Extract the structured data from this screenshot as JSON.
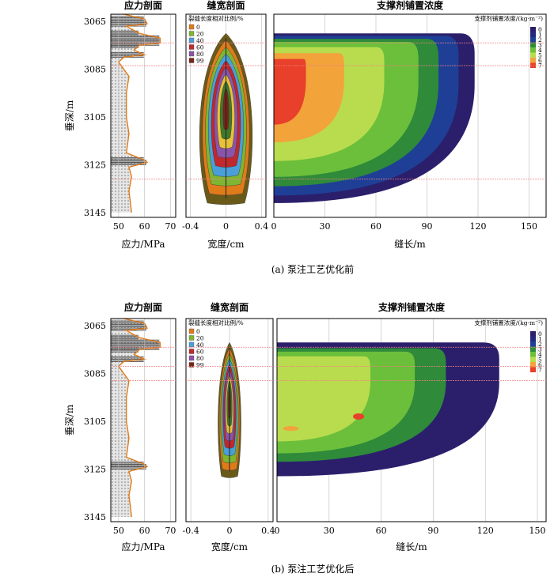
{
  "chart_data": [
    {
      "id": "a",
      "caption": "(a) 泵注工艺优化前",
      "ylabel": "垂深/m",
      "yticks": [
        "3065",
        "3085",
        "3105",
        "3125",
        "3145"
      ],
      "ylim": [
        3062,
        3147
      ],
      "stress": {
        "title": "应力剖面",
        "xlabel": "应力/MPa",
        "xticks": [
          "50",
          "60",
          "70"
        ],
        "xlim": [
          47,
          72
        ],
        "profile": [
          {
            "depth": 3062,
            "value": 52
          },
          {
            "depth": 3064,
            "value": 60
          },
          {
            "depth": 3066,
            "value": 61
          },
          {
            "depth": 3067,
            "value": 53
          },
          {
            "depth": 3070,
            "value": 58
          },
          {
            "depth": 3072,
            "value": 66
          },
          {
            "depth": 3074,
            "value": 66
          },
          {
            "depth": 3075,
            "value": 58
          },
          {
            "depth": 3077,
            "value": 56
          },
          {
            "depth": 3079,
            "value": 60
          },
          {
            "depth": 3080,
            "value": 52
          },
          {
            "depth": 3082,
            "value": 50
          },
          {
            "depth": 3085,
            "value": 52
          },
          {
            "depth": 3088,
            "value": 54
          },
          {
            "depth": 3095,
            "value": 53
          },
          {
            "depth": 3105,
            "value": 53
          },
          {
            "depth": 3112,
            "value": 54
          },
          {
            "depth": 3120,
            "value": 53
          },
          {
            "depth": 3123,
            "value": 60
          },
          {
            "depth": 3124,
            "value": 61
          },
          {
            "depth": 3126,
            "value": 54
          },
          {
            "depth": 3130,
            "value": 55
          },
          {
            "depth": 3136,
            "value": 54
          },
          {
            "depth": 3145,
            "value": 55
          }
        ]
      },
      "width": {
        "title": "缝宽剖面",
        "xlabel": "宽度/cm",
        "xticks": [
          "-0.4",
          "0",
          "0.4"
        ],
        "xlim": [
          -0.45,
          0.45
        ],
        "legend_title": "裂缝长度相对比例/%",
        "legend": [
          {
            "label": "0",
            "color": "#e07b1a"
          },
          {
            "label": "20",
            "color": "#7fb532"
          },
          {
            "label": "40",
            "color": "#4a9fd8"
          },
          {
            "label": "60",
            "color": "#c0282d"
          },
          {
            "label": "80",
            "color": "#8a55a8"
          },
          {
            "label": "99",
            "color": "#7a2418"
          }
        ],
        "top": 3070,
        "bottom": 3141,
        "max_half_width": 0.35
      },
      "conc": {
        "title": "支撑剂铺置浓度",
        "xlabel": "缝长/m",
        "xticks": [
          "0",
          "30",
          "60",
          "90",
          "120",
          "150"
        ],
        "xlim": [
          0,
          160
        ],
        "legend_title": "支撑剂铺置浓度/(kg·m⁻²)",
        "legend": [
          "0",
          "1",
          "2",
          "3",
          "4",
          "5",
          "6",
          "7"
        ],
        "length": 118,
        "top": 3070,
        "bottom": 3141
      },
      "hlines": [
        3074,
        3083.5,
        3131
      ]
    },
    {
      "id": "b",
      "caption": "(b) 泵注工艺优化后",
      "ylabel": "垂深/m",
      "yticks": [
        "3065",
        "3085",
        "3105",
        "3125",
        "3145"
      ],
      "ylim": [
        3062,
        3147
      ],
      "stress": {
        "title": "应力剖面",
        "xlabel": "应力/MPa",
        "xticks": [
          "50",
          "60",
          "70"
        ],
        "xlim": [
          47,
          72
        ],
        "profile": [
          {
            "depth": 3062,
            "value": 52
          },
          {
            "depth": 3064,
            "value": 60
          },
          {
            "depth": 3066,
            "value": 61
          },
          {
            "depth": 3067,
            "value": 53
          },
          {
            "depth": 3070,
            "value": 58
          },
          {
            "depth": 3072,
            "value": 66
          },
          {
            "depth": 3074,
            "value": 66
          },
          {
            "depth": 3075,
            "value": 58
          },
          {
            "depth": 3077,
            "value": 56
          },
          {
            "depth": 3079,
            "value": 60
          },
          {
            "depth": 3080,
            "value": 52
          },
          {
            "depth": 3082,
            "value": 50
          },
          {
            "depth": 3085,
            "value": 52
          },
          {
            "depth": 3088,
            "value": 54
          },
          {
            "depth": 3095,
            "value": 53
          },
          {
            "depth": 3105,
            "value": 53
          },
          {
            "depth": 3112,
            "value": 54
          },
          {
            "depth": 3120,
            "value": 53
          },
          {
            "depth": 3123,
            "value": 60
          },
          {
            "depth": 3124,
            "value": 61
          },
          {
            "depth": 3126,
            "value": 54
          },
          {
            "depth": 3130,
            "value": 55
          },
          {
            "depth": 3136,
            "value": 54
          },
          {
            "depth": 3145,
            "value": 55
          }
        ]
      },
      "width": {
        "title": "缝宽剖面",
        "xlabel": "宽度/cm",
        "xticks": [
          "-0.4",
          "0",
          "0.4"
        ],
        "xlim": [
          -0.45,
          0.45
        ],
        "legend_title": "裂缝长度相对比例/%",
        "legend": [
          {
            "label": "0",
            "color": "#e07b1a"
          },
          {
            "label": "20",
            "color": "#7fb532"
          },
          {
            "label": "40",
            "color": "#4a9fd8"
          },
          {
            "label": "60",
            "color": "#c0282d"
          },
          {
            "label": "80",
            "color": "#8a55a8"
          },
          {
            "label": "99",
            "color": "#7a2418"
          }
        ],
        "top": 3072,
        "bottom": 3128,
        "max_half_width": 0.14
      },
      "conc": {
        "title": "支撑剂铺置浓度",
        "xlabel": "缝长/m",
        "xticks": [
          "0",
          "30",
          "60",
          "90",
          "120",
          "150"
        ],
        "xlim": [
          0,
          155
        ],
        "legend_title": "支撑剂铺置浓度/(kg·m⁻²)",
        "legend": [
          "0",
          "1",
          "2",
          "3",
          "4",
          "5",
          "6",
          "7"
        ],
        "length": 128,
        "top": 3072,
        "bottom": 3128
      },
      "hlines": [
        3074,
        3082,
        3088
      ]
    }
  ],
  "colors": {
    "conc_scale": [
      "#2b1f6b",
      "#23287c",
      "#1f3f96",
      "#2f8a3a",
      "#6cbf3a",
      "#b9dc4e",
      "#f2a33a",
      "#e8402a"
    ],
    "stress_line": "#e07b1a",
    "grid": "#bbbbbb",
    "ref_line": "#f08080"
  }
}
